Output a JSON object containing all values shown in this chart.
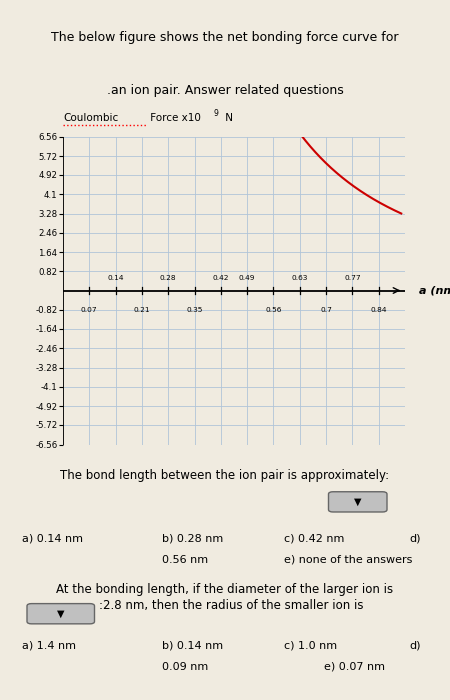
{
  "title_line1": "The below figure shows the net bonding force curve for",
  "title_line2": ".an ion pair. Answer related questions",
  "ylabel_part1": "Coulombic",
  "ylabel_part2": " Force x10",
  "ylabel_exp": "9",
  "ylabel_part3": " N",
  "xlabel": "a (nm)",
  "yticks": [
    6.56,
    5.72,
    4.92,
    4.1,
    3.28,
    2.46,
    1.64,
    0.82,
    -0.82,
    -1.64,
    -2.46,
    -3.28,
    -4.1,
    -4.92,
    -5.72,
    -6.56
  ],
  "xticks_top": [
    0.14,
    0.28,
    0.42,
    0.49,
    0.63,
    0.77
  ],
  "xticks_bot": [
    0.07,
    0.21,
    0.35,
    0.56,
    0.7,
    0.84
  ],
  "ylim": [
    -6.56,
    6.56
  ],
  "xlim": [
    0.0,
    0.91
  ],
  "curve_color": "#cc0000",
  "grid_color": "#b0c4d8",
  "background_color": "#f0ebe0",
  "curve_A": 0.08,
  "curve_B": 2.5e-12,
  "curve_n": 9,
  "curve_peak_target": 3.28,
  "curve_xstart": 0.145,
  "curve_xend": 0.9
}
